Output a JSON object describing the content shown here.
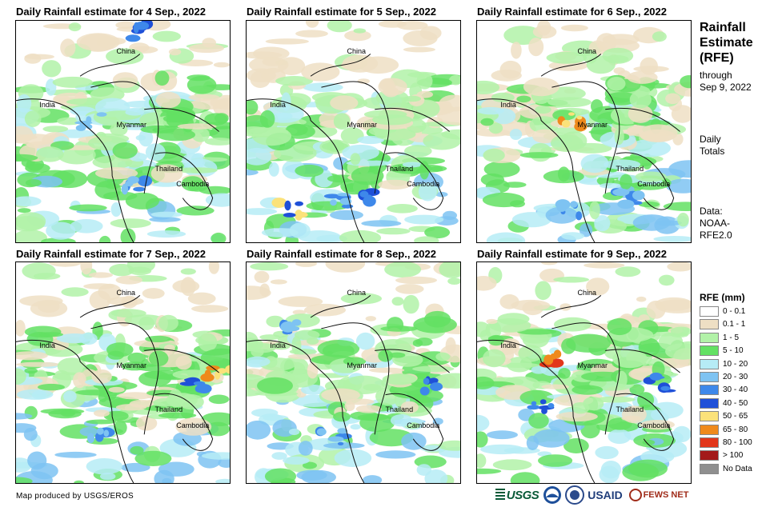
{
  "panels": [
    {
      "title": "Daily Rainfall estimate for 4 Sep., 2022",
      "variant": 0
    },
    {
      "title": "Daily Rainfall estimate for 5 Sep., 2022",
      "variant": 1
    },
    {
      "title": "Daily Rainfall estimate for 6 Sep., 2022",
      "variant": 2
    },
    {
      "title": "Daily Rainfall estimate for 7 Sep., 2022",
      "variant": 3
    },
    {
      "title": "Daily Rainfall estimate for 8 Sep., 2022",
      "variant": 4
    },
    {
      "title": "Daily Rainfall estimate for 9 Sep., 2022",
      "variant": 5
    }
  ],
  "countries": {
    "china": "China",
    "india": "India",
    "myanmar": "Myanmar",
    "thailand": "Thailand",
    "cambodia": "Cambodia"
  },
  "sidebar": {
    "title_line1": "Rainfall",
    "title_line2": "Estimate",
    "title_line3": "(RFE)",
    "through": "through",
    "through_date": "Sep 9, 2022",
    "daily": "Daily",
    "totals": "Totals",
    "data_label": "Data:",
    "data_source1": "NOAA-",
    "data_source2": "RFE2.0"
  },
  "legend": {
    "title": "RFE (mm)",
    "items": [
      {
        "label": "0 - 0.1",
        "color": "#ffffff"
      },
      {
        "label": "0.1 - 1",
        "color": "#eedfc4"
      },
      {
        "label": "1 - 5",
        "color": "#b2f2a8"
      },
      {
        "label": "5 - 10",
        "color": "#63e163"
      },
      {
        "label": "10 - 20",
        "color": "#b6ecf6"
      },
      {
        "label": "20 - 30",
        "color": "#7ec3f2"
      },
      {
        "label": "30 - 40",
        "color": "#3e88ea"
      },
      {
        "label": "40 - 50",
        "color": "#1f50d8"
      },
      {
        "label": "50 - 65",
        "color": "#fbe27a"
      },
      {
        "label": "65 - 80",
        "color": "#ef8a1c"
      },
      {
        "label": "80 - 100",
        "color": "#e2361a"
      },
      {
        "label": "> 100",
        "color": "#a31a1a"
      },
      {
        "label": "No Data",
        "color": "#8f8f8f"
      }
    ]
  },
  "footer": {
    "credit": "Map produced by USGS/EROS",
    "logo_usgs": "USGS",
    "logo_noaa": "NOAA",
    "logo_usaid": "USAID",
    "logo_fewsnet": "FEWS NET"
  }
}
